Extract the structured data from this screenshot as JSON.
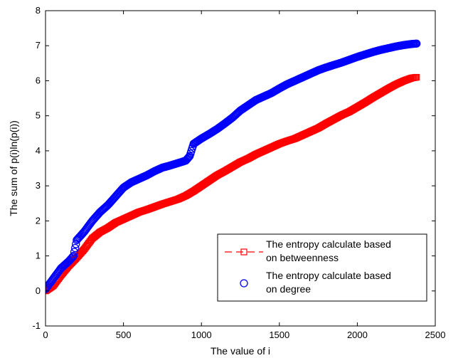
{
  "chart_data": {
    "type": "scatter",
    "title": "",
    "xlabel": "The value of i",
    "ylabel": "The sum of p(i)ln(p(i))",
    "xlim": [
      0,
      2500
    ],
    "ylim": [
      -1,
      8
    ],
    "xticks": [
      0,
      500,
      1000,
      1500,
      2000,
      2500
    ],
    "yticks": [
      -1,
      0,
      1,
      2,
      3,
      4,
      5,
      6,
      7,
      8
    ],
    "grid": false,
    "legend_position": "lower-right",
    "series": [
      {
        "name": "The entropy calculate based on betweenness",
        "legend_lines": [
          "The entropy calculate based",
          "on betweenness"
        ],
        "marker": "square",
        "line_style": "dashed",
        "color": "#ff0000",
        "x": [
          0,
          50,
          100,
          150,
          200,
          250,
          300,
          350,
          400,
          450,
          500,
          550,
          600,
          650,
          700,
          750,
          800,
          850,
          900,
          950,
          1000,
          1050,
          1100,
          1150,
          1200,
          1250,
          1300,
          1350,
          1400,
          1450,
          1500,
          1550,
          1600,
          1650,
          1700,
          1750,
          1800,
          1850,
          1900,
          1950,
          2000,
          2050,
          2100,
          2150,
          2200,
          2250,
          2300,
          2350,
          2380
        ],
        "y": [
          0.0,
          0.15,
          0.45,
          0.72,
          0.95,
          1.2,
          1.5,
          1.68,
          1.8,
          1.95,
          2.05,
          2.15,
          2.25,
          2.32,
          2.4,
          2.48,
          2.55,
          2.62,
          2.72,
          2.85,
          3.0,
          3.15,
          3.3,
          3.42,
          3.55,
          3.68,
          3.78,
          3.9,
          4.0,
          4.1,
          4.2,
          4.28,
          4.35,
          4.45,
          4.55,
          4.65,
          4.78,
          4.9,
          5.02,
          5.12,
          5.25,
          5.38,
          5.52,
          5.65,
          5.78,
          5.9,
          6.0,
          6.08,
          6.1
        ]
      },
      {
        "name": "The entropy calculate based on degree",
        "legend_lines": [
          "The entropy calculate based",
          "on degree"
        ],
        "marker": "circle",
        "line_style": "none",
        "color": "#0000ff",
        "x": [
          0,
          50,
          100,
          150,
          180,
          200,
          250,
          300,
          350,
          400,
          450,
          500,
          550,
          600,
          650,
          700,
          750,
          800,
          850,
          900,
          925,
          950,
          1000,
          1050,
          1100,
          1150,
          1200,
          1250,
          1300,
          1350,
          1400,
          1450,
          1500,
          1550,
          1600,
          1650,
          1700,
          1750,
          1800,
          1850,
          1900,
          1950,
          2000,
          2050,
          2100,
          2150,
          2200,
          2250,
          2300,
          2350,
          2380
        ],
        "y": [
          0.05,
          0.35,
          0.65,
          0.85,
          1.0,
          1.45,
          1.7,
          2.0,
          2.25,
          2.45,
          2.7,
          2.95,
          3.1,
          3.2,
          3.3,
          3.42,
          3.52,
          3.58,
          3.65,
          3.72,
          3.85,
          4.2,
          4.35,
          4.48,
          4.62,
          4.78,
          4.95,
          5.15,
          5.3,
          5.45,
          5.55,
          5.65,
          5.78,
          5.9,
          6.0,
          6.1,
          6.2,
          6.3,
          6.38,
          6.45,
          6.52,
          6.6,
          6.68,
          6.75,
          6.82,
          6.88,
          6.93,
          6.98,
          7.02,
          7.05,
          7.06
        ]
      }
    ]
  }
}
